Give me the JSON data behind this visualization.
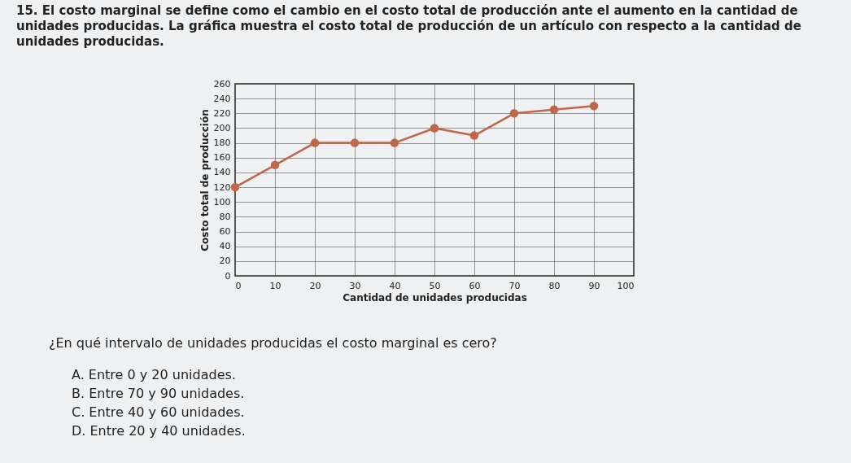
{
  "chart_data": {
    "type": "line",
    "title": "15. El costo marginal se define como el cambio en el costo total de producción ante el aumento en la cantidad de unidades producidas. La gráfica muestra el costo total de producción de un artículo con respecto a la cantidad de unidades producidas.",
    "xlabel": "Cantidad de unidades producidas",
    "ylabel": "Costo total de producción",
    "x": [
      0,
      10,
      20,
      30,
      40,
      50,
      60,
      70,
      80,
      90
    ],
    "series": [
      {
        "color": "#c0674a",
        "values": [
          120,
          150,
          180,
          180,
          180,
          200,
          190,
          220,
          225,
          230
        ]
      }
    ],
    "xlim": [
      0,
      100
    ],
    "xticks": [
      0,
      10,
      20,
      30,
      40,
      50,
      60,
      70,
      80,
      90,
      100
    ],
    "ylim": [
      0,
      260
    ],
    "yticks": [
      0,
      20,
      40,
      60,
      80,
      100,
      120,
      140,
      160,
      180,
      200,
      220,
      240,
      260
    ],
    "grid": true,
    "marker": "circle",
    "line_style": "solid",
    "annotations": [
      "¿En qué intervalo de unidades producidas el costo marginal es cero?",
      "A. Entre 0 y 20 unidades.",
      "B. Entre 70 y 90 unidades.",
      "C. Entre 40 y 60 unidades.",
      "D. Entre 20 y 40 unidades."
    ]
  }
}
